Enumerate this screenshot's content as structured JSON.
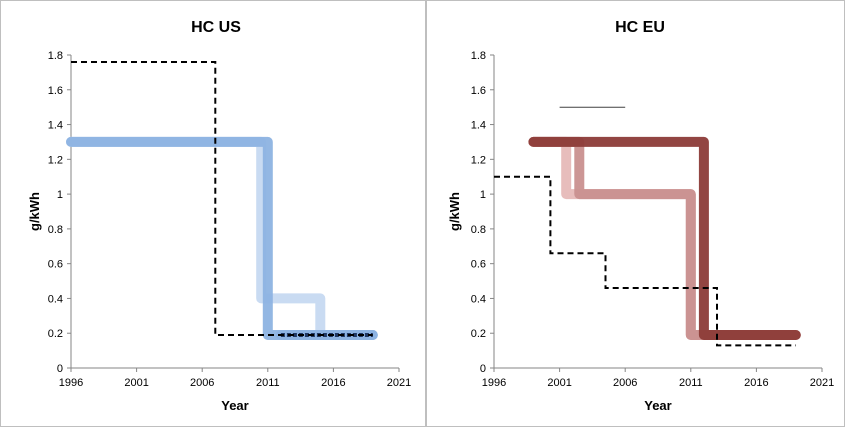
{
  "chart_data": [
    {
      "type": "line",
      "title": "HC US",
      "xlabel": "Year",
      "ylabel": "g/kWh",
      "xlim": [
        1996,
        2021
      ],
      "ylim": [
        0,
        1.8
      ],
      "xticks": [
        1996,
        2001,
        2006,
        2011,
        2016,
        2021
      ],
      "yticks": [
        0,
        0.2,
        0.4,
        0.6,
        0.8,
        1,
        1.2,
        1.4,
        1.6,
        1.8
      ],
      "grid": false,
      "legend": "none",
      "series": [
        {
          "style": "step-thick",
          "color": "#c6d9f1",
          "points": [
            [
              1996,
              1.3
            ],
            [
              2010.5,
              1.3
            ],
            [
              2010.5,
              0.4
            ],
            [
              2015,
              0.4
            ],
            [
              2015,
              0.19
            ],
            [
              2019,
              0.19
            ]
          ]
        },
        {
          "style": "step-thick",
          "color": "#8db3e2",
          "points": [
            [
              1996,
              1.3
            ],
            [
              2011,
              1.3
            ],
            [
              2011,
              0.19
            ],
            [
              2019,
              0.19
            ]
          ]
        },
        {
          "style": "step-thick-outlined",
          "color": "#1f3864",
          "points": [
            [
              2012,
              0.19
            ],
            [
              2019,
              0.19
            ]
          ]
        },
        {
          "style": "dashed",
          "color": "#000000",
          "points": [
            [
              1996,
              1.76
            ],
            [
              2007,
              1.76
            ],
            [
              2007,
              0.19
            ],
            [
              2019,
              0.19
            ]
          ]
        }
      ]
    },
    {
      "type": "line",
      "title": "HC EU",
      "xlabel": "Year",
      "ylabel": "g/kWh",
      "xlim": [
        1996,
        2021
      ],
      "ylim": [
        0,
        1.8
      ],
      "xticks": [
        1996,
        2001,
        2006,
        2011,
        2016,
        2021
      ],
      "yticks": [
        0,
        0.2,
        0.4,
        0.6,
        0.8,
        1,
        1.2,
        1.4,
        1.6,
        1.8
      ],
      "grid": false,
      "legend": "none",
      "series": [
        {
          "style": "step-thick",
          "color": "#e6b9b8",
          "points": [
            [
              1999,
              1.3
            ],
            [
              2001.5,
              1.3
            ],
            [
              2001.5,
              1.0
            ],
            [
              2011,
              1.0
            ],
            [
              2011,
              0.19
            ],
            [
              2019,
              0.19
            ]
          ]
        },
        {
          "style": "step-thick",
          "color": "#c9908f",
          "points": [
            [
              1999,
              1.3
            ],
            [
              2002.5,
              1.3
            ],
            [
              2002.5,
              1.0
            ],
            [
              2011,
              1.0
            ],
            [
              2011,
              0.19
            ],
            [
              2019,
              0.19
            ]
          ]
        },
        {
          "style": "step-thick",
          "color": "#8c3b38",
          "points": [
            [
              1999,
              1.3
            ],
            [
              2012,
              1.3
            ],
            [
              2012,
              0.19
            ],
            [
              2019,
              0.19
            ]
          ]
        },
        {
          "style": "dashed",
          "color": "#000000",
          "points": [
            [
              1996,
              1.1
            ],
            [
              2000.3,
              1.1
            ],
            [
              2000.3,
              0.66
            ],
            [
              2004.5,
              0.66
            ],
            [
              2004.5,
              0.46
            ],
            [
              2013,
              0.46
            ],
            [
              2013,
              0.13
            ],
            [
              2019,
              0.13
            ]
          ]
        },
        {
          "style": "thin",
          "color": "#404040",
          "points": [
            [
              2001,
              1.5
            ],
            [
              2006,
              1.5
            ]
          ]
        }
      ]
    }
  ]
}
